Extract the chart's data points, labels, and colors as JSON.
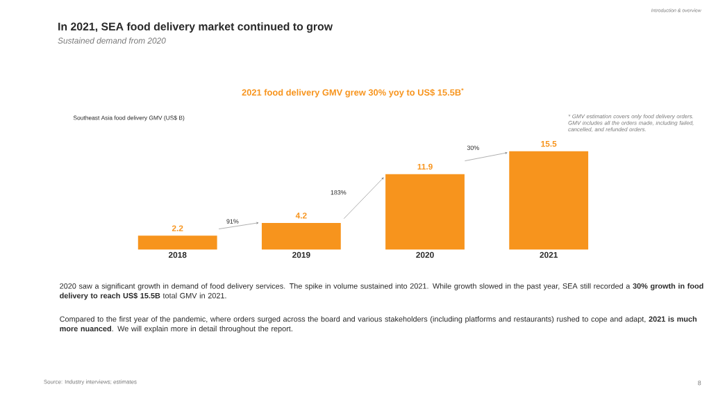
{
  "chart_data": {
    "type": "bar",
    "title": "In 2021, SEA food delivery market continued to grow",
    "subtitle": "Sustained demand from 2020",
    "categories": [
      "2018",
      "2019",
      "2020",
      "2021"
    ],
    "values": [
      2.2,
      4.2,
      11.9,
      15.5
    ],
    "value_labels": [
      "2.2",
      "4.2",
      "11.9",
      "15.5"
    ],
    "color": "#f7941d",
    "annotations": [
      "Introduction & overview",
      "2021 food delivery GMV grew 30% yoy to US$ 15.5B$^{*}$",
      "91%",
      "183%",
      "30%",
      "* GMV estimation covers only food delivery orders. GMV includes all the orders made, including failed, cancelled, and refunded orders.",
      "2020 saw a significant growth in demand of food delivery services. The spike in volume sustained into 2021. While growth slowed in the past year, SEA still recorded a **30% growth in food delivery to reach US$ 15.5B** total GMV in 2021.",
      "Compared to the first year of the pandemic, where orders surged across the board and various stakeholders (including platforms and restaurants) rushed to cope and adapt, **2021 is much more nuanced**. We will explain more in detail throughout the report.",
      "Source: Industry interviews; estimates",
      "8",
      "Southeast Asia food delivery GMV (US$ B)"
    ]
  }
}
